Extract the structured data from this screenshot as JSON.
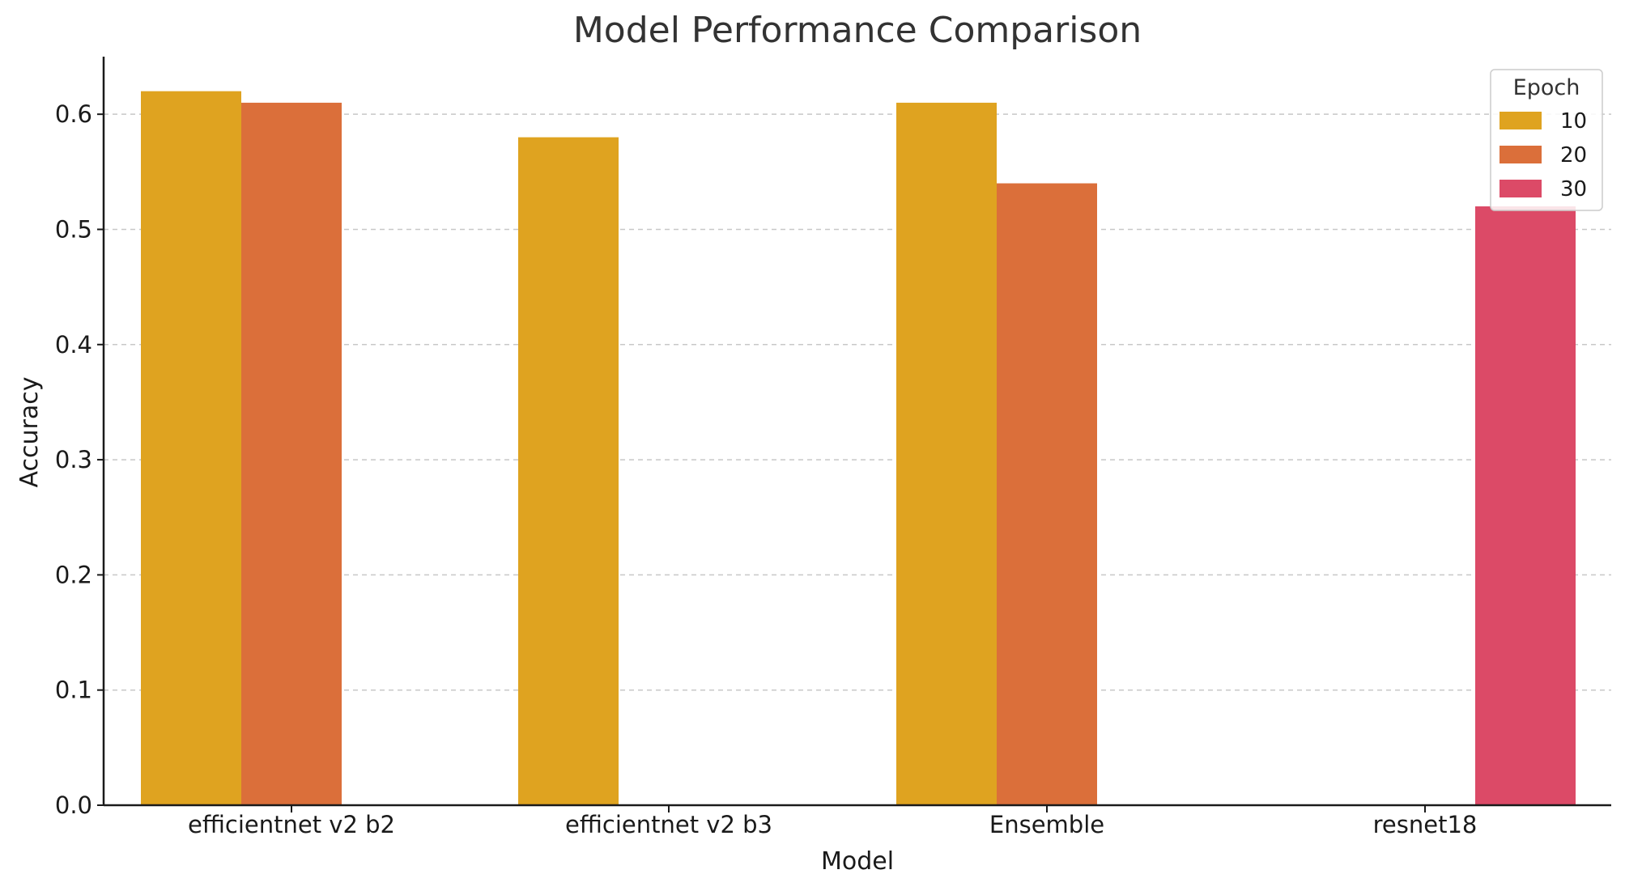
{
  "chart_data": {
    "type": "bar",
    "title": "Model Performance Comparison",
    "xlabel": "Model",
    "ylabel": "Accuracy",
    "categories": [
      "efficientnet v2 b2",
      "efficientnet v2 b3",
      "Ensemble",
      "resnet18"
    ],
    "series": [
      {
        "name": "10",
        "color": "#dfa320",
        "values": [
          0.62,
          0.58,
          0.61,
          null
        ]
      },
      {
        "name": "20",
        "color": "#db6f3a",
        "values": [
          0.61,
          null,
          0.54,
          null
        ]
      },
      {
        "name": "30",
        "color": "#dc4a67",
        "values": [
          null,
          null,
          null,
          0.52
        ]
      }
    ],
    "ylim": [
      0,
      0.65
    ],
    "yticks": [
      "0.0",
      "0.1",
      "0.2",
      "0.3",
      "0.4",
      "0.5",
      "0.6"
    ],
    "grid": "horizontal-dashed",
    "legend": {
      "title": "Epoch",
      "placement": "top-right"
    }
  }
}
